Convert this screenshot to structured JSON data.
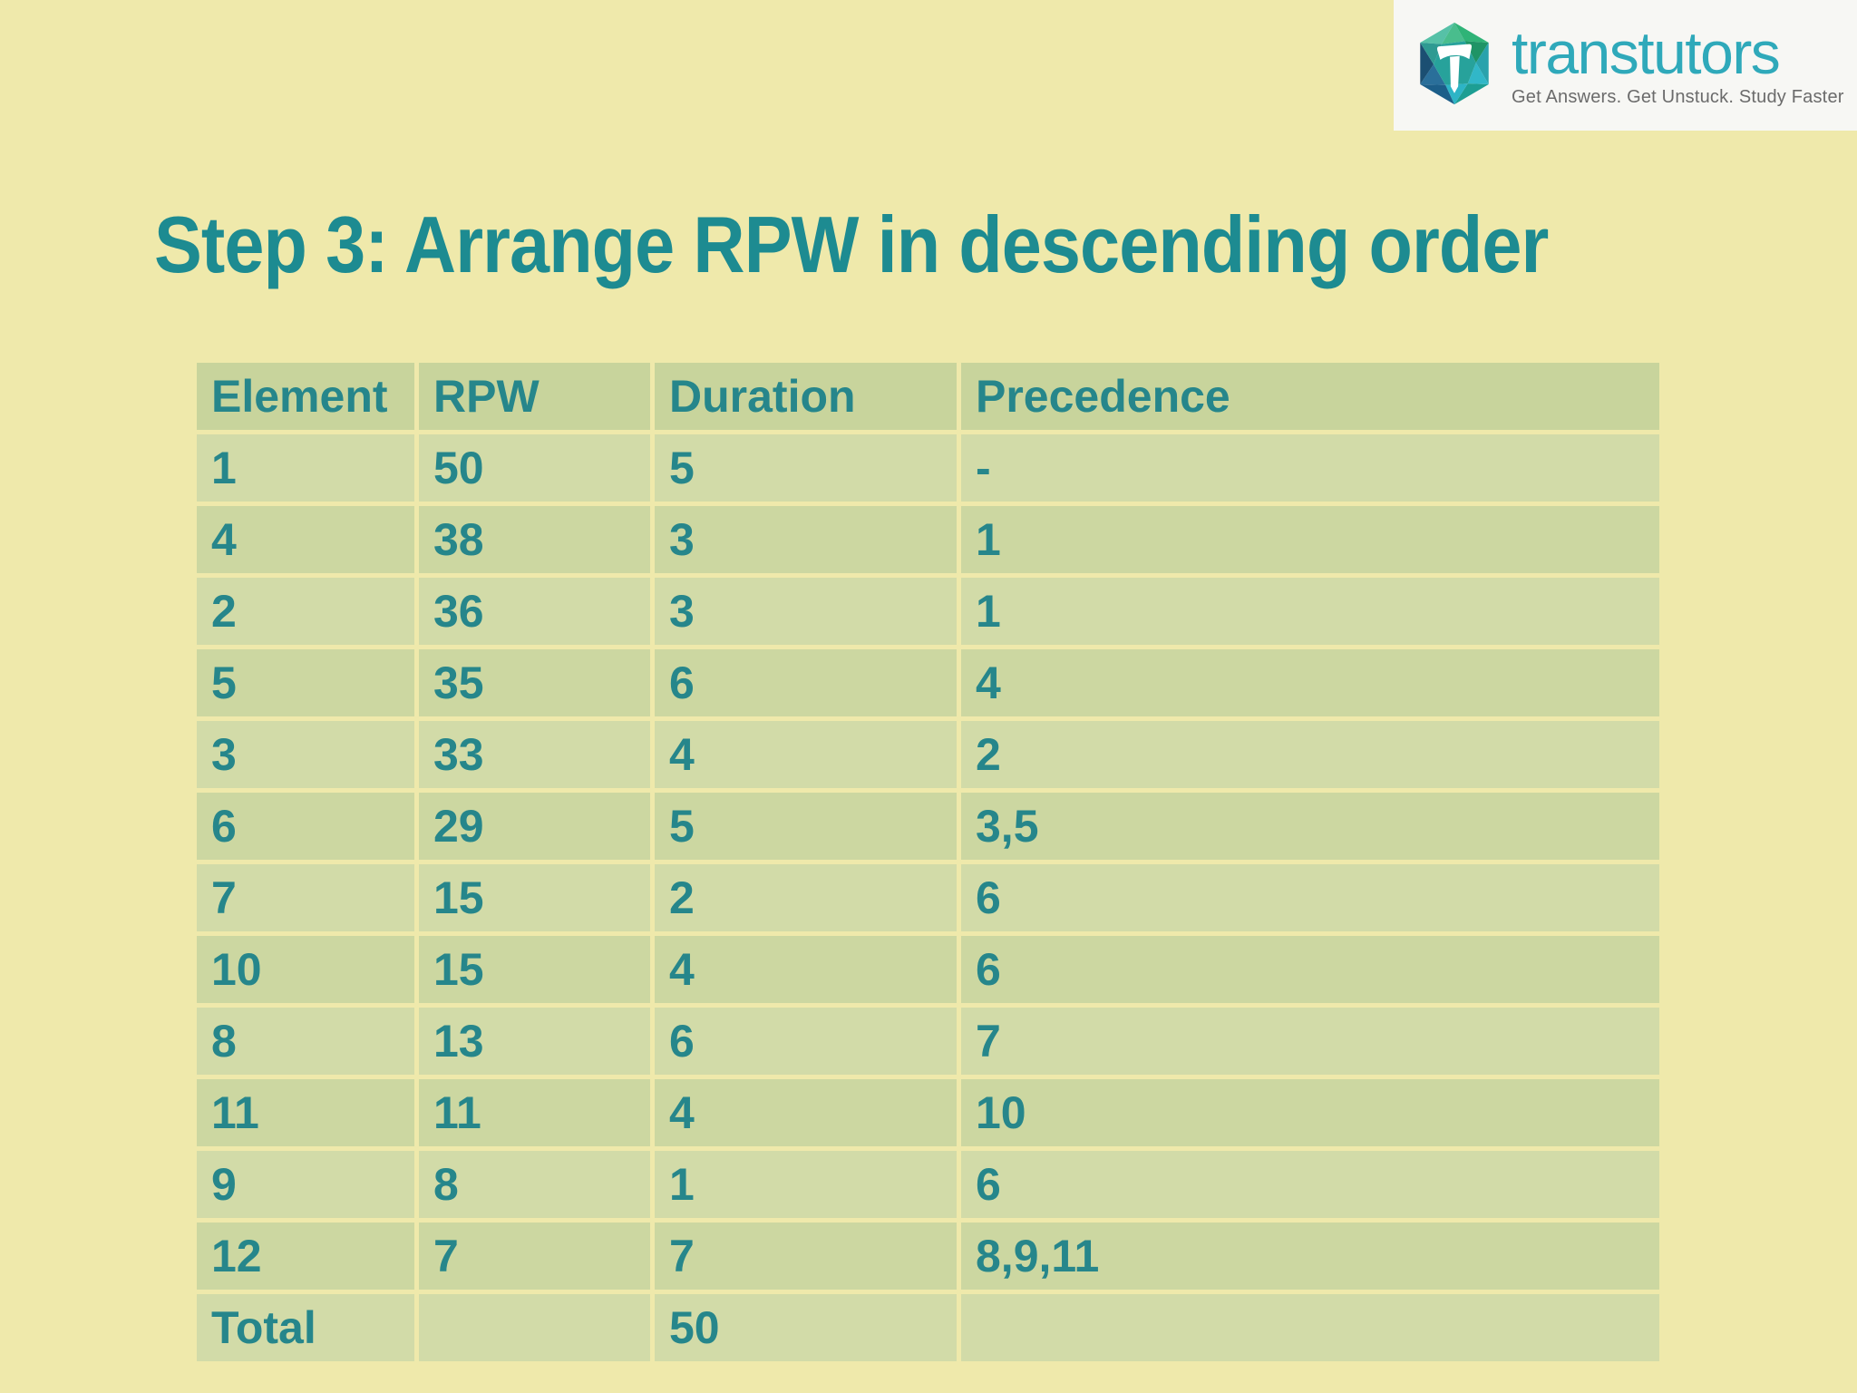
{
  "colors": {
    "bg": "#efe9ab",
    "accent": "#26868b",
    "title": "#1d8b91",
    "header-bg": "#c8d49c",
    "row-odd": "#d2dba8",
    "row-even": "#ccd7a1",
    "brand": "#2fa9ba",
    "tagline": "#6b6b6b",
    "logo-box": "#f7f7f4"
  },
  "logo": {
    "brand": "transtutors",
    "tagline": "Get Answers. Get Unstuck. Study Faster",
    "icon": "transtutors-hexagon-t-icon"
  },
  "title": {
    "text": "Step 3: Arrange RPW in descending order"
  },
  "table": {
    "columns": [
      "Element",
      "RPW",
      "Duration",
      "Precedence"
    ],
    "rows": [
      [
        "1",
        "50",
        "5",
        "-"
      ],
      [
        "4",
        "38",
        "3",
        "1"
      ],
      [
        "2",
        "36",
        "3",
        "1"
      ],
      [
        "5",
        "35",
        "6",
        "4"
      ],
      [
        "3",
        "33",
        "4",
        "2"
      ],
      [
        "6",
        "29",
        "5",
        "3,5"
      ],
      [
        "7",
        "15",
        "2",
        "6"
      ],
      [
        "10",
        "15",
        "4",
        "6"
      ],
      [
        "8",
        "13",
        "6",
        "7"
      ],
      [
        "11",
        "11",
        "4",
        "10"
      ],
      [
        "9",
        "8",
        "1",
        "6"
      ],
      [
        "12",
        "7",
        "7",
        "8,9,11"
      ],
      [
        "Total",
        "",
        "50",
        ""
      ]
    ]
  }
}
